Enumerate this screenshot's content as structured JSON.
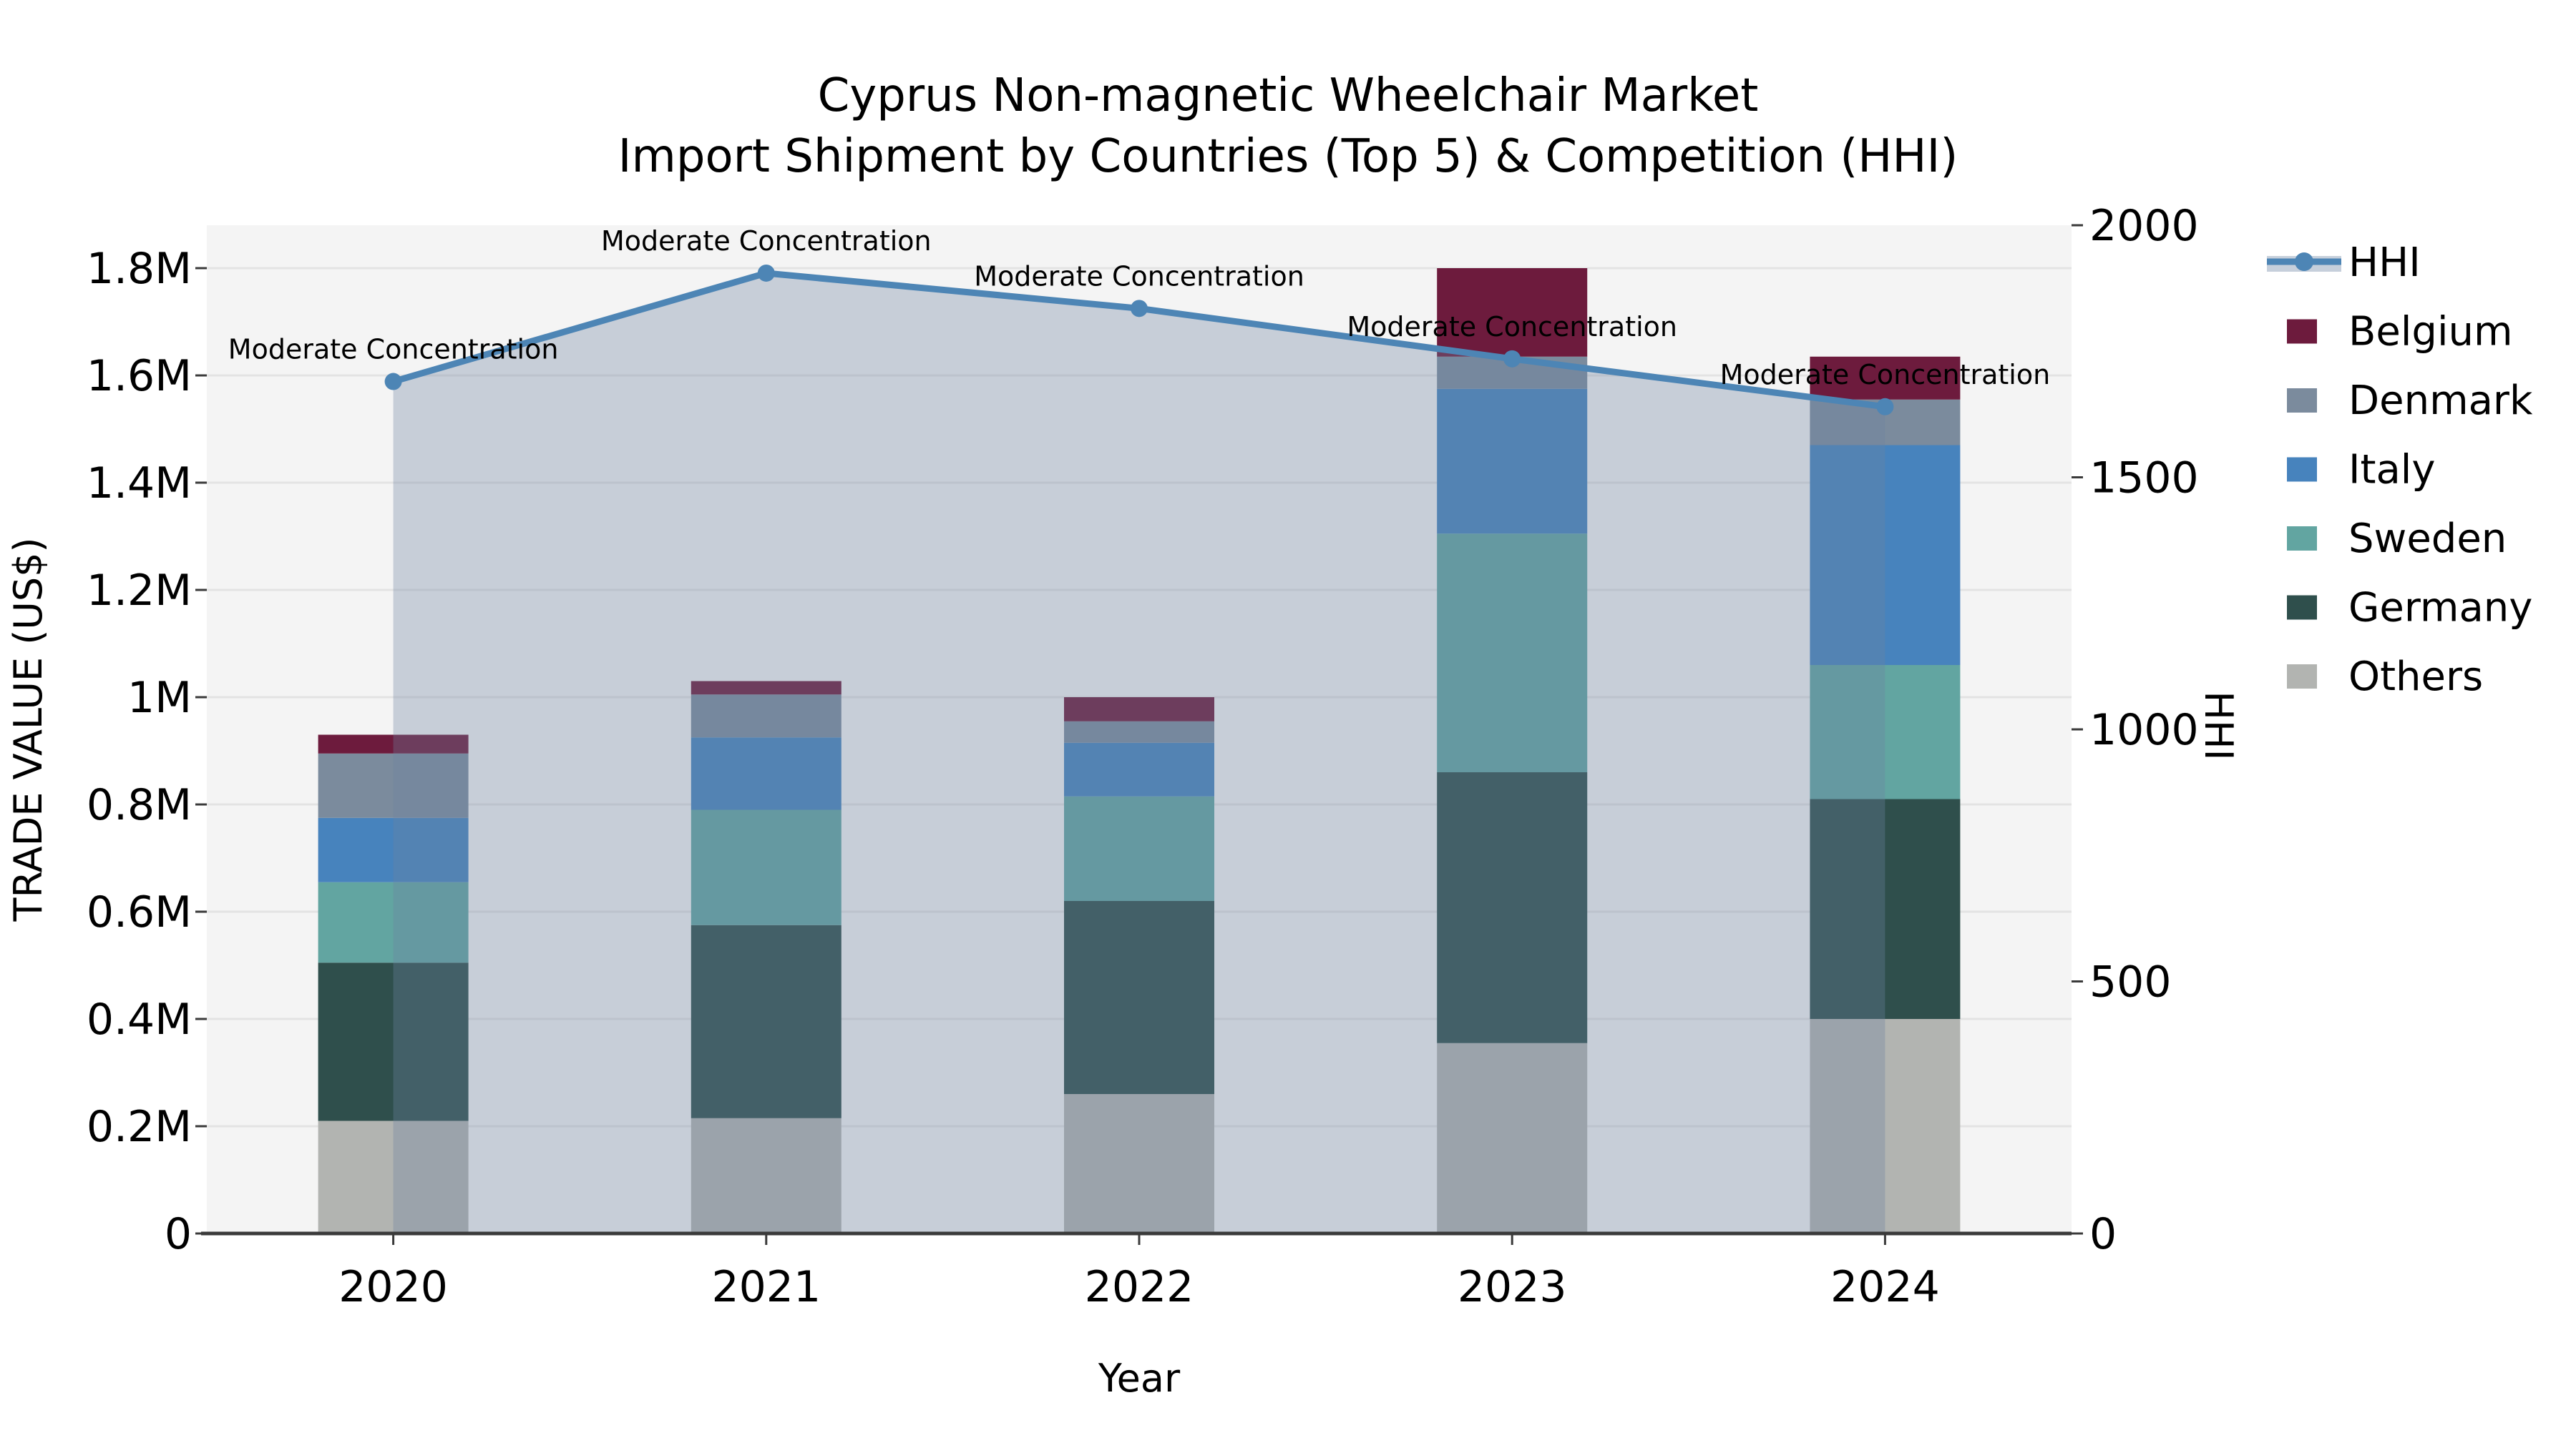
{
  "title": {
    "line1": "Cyprus Non-magnetic Wheelchair Market",
    "line2": "Import Shipment by Countries (Top 5) & Competition (HHI)"
  },
  "axes": {
    "y_left": {
      "label": "TRADE VALUE (US$)",
      "ticks": [
        {
          "label": "0",
          "value": 0
        },
        {
          "label": "0.2M",
          "value": 200000
        },
        {
          "label": "0.4M",
          "value": 400000
        },
        {
          "label": "0.6M",
          "value": 600000
        },
        {
          "label": "0.8M",
          "value": 800000
        },
        {
          "label": "1M",
          "value": 1000000
        },
        {
          "label": "1.2M",
          "value": 1200000
        },
        {
          "label": "1.4M",
          "value": 1400000
        },
        {
          "label": "1.6M",
          "value": 1600000
        },
        {
          "label": "1.8M",
          "value": 1800000
        }
      ]
    },
    "y_right": {
      "label": "HHI",
      "ticks": [
        {
          "label": "0",
          "value": 0
        },
        {
          "label": "500",
          "value": 500
        },
        {
          "label": "1000",
          "value": 1000
        },
        {
          "label": "1500",
          "value": 1500
        },
        {
          "label": "2000",
          "value": 2000
        }
      ]
    },
    "x": {
      "label": "Year"
    }
  },
  "chart_data": {
    "type": "stacked-bar+line",
    "categories": [
      "2020",
      "2021",
      "2022",
      "2023",
      "2024"
    ],
    "series": [
      {
        "name": "Others",
        "color": "#b2b4b1",
        "values": [
          210000,
          215000,
          260000,
          355000,
          400000
        ]
      },
      {
        "name": "Germany",
        "color": "#2f4f4c",
        "values": [
          295000,
          360000,
          360000,
          505000,
          410000
        ]
      },
      {
        "name": "Sweden",
        "color": "#62a5a1",
        "values": [
          150000,
          215000,
          195000,
          445000,
          250000
        ]
      },
      {
        "name": "Italy",
        "color": "#4783bd",
        "values": [
          120000,
          135000,
          100000,
          270000,
          410000
        ]
      },
      {
        "name": "Denmark",
        "color": "#7b8b9d",
        "values": [
          120000,
          80000,
          40000,
          60000,
          85000
        ]
      },
      {
        "name": "Belgium",
        "color": "#6d1b3d",
        "values": [
          35000,
          25000,
          45000,
          165000,
          80000
        ]
      }
    ],
    "line_series": {
      "name": "HHI",
      "axis": "right",
      "color": "#4d85b5",
      "area_color": "#6e82a0",
      "area_opacity": 0.33,
      "values": [
        1690,
        1905,
        1835,
        1735,
        1640
      ]
    },
    "annotations": [
      {
        "category": "2020",
        "text": "Moderate Concentration"
      },
      {
        "category": "2021",
        "text": "Moderate Concentration"
      },
      {
        "category": "2022",
        "text": "Moderate Concentration"
      },
      {
        "category": "2023",
        "text": "Moderate Concentration"
      },
      {
        "category": "2024",
        "text": "Moderate Concentration"
      },
      {
        "category": "2024",
        "text": ""
      }
    ],
    "title": "Cyprus Non-magnetic Wheelchair Market\nImport Shipment by Countries (Top 5) & Competition (HHI)",
    "xlabel": "Year",
    "ylabel": "TRADE VALUE (US$)",
    "ylabel_right": "HHI",
    "ylim_left": [
      0,
      1880000
    ],
    "ylim_right": [
      0,
      2000
    ],
    "grid": true,
    "legend_position": "right"
  },
  "legend": {
    "items": [
      {
        "label": "HHI",
        "type": "line",
        "color": "#4d85b5",
        "band": "#c6cfdb"
      },
      {
        "label": "Belgium",
        "type": "swatch",
        "color": "#6d1b3d"
      },
      {
        "label": "Denmark",
        "type": "swatch",
        "color": "#7b8b9d"
      },
      {
        "label": "Italy",
        "type": "swatch",
        "color": "#4783bd"
      },
      {
        "label": "Sweden",
        "type": "swatch",
        "color": "#62a5a1"
      },
      {
        "label": "Germany",
        "type": "swatch",
        "color": "#2f4f4c"
      },
      {
        "label": "Others",
        "type": "swatch",
        "color": "#b2b4b1"
      }
    ]
  },
  "colors": {
    "figure_bg": "#ffffff",
    "plot_bg": "#f4f4f4",
    "grid": "#e3e3e3",
    "spine": "#3a3a3a",
    "text": "#000000"
  }
}
